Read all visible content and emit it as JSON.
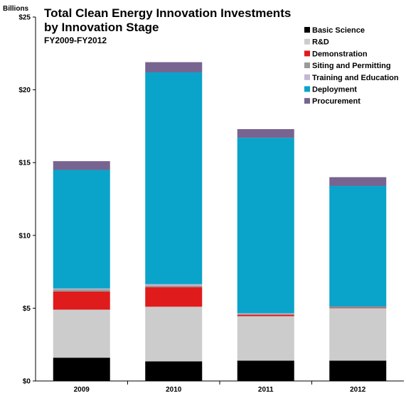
{
  "chart_data": {
    "type": "bar",
    "stacked": true,
    "title": "Total Clean Energy Innovation Investments",
    "title_line2": "by Innovation Stage",
    "subtitle": "FY2009-FY2012",
    "ylabel": "Billions",
    "ylim": [
      0,
      25
    ],
    "yticks": [
      0,
      5,
      10,
      15,
      20,
      25
    ],
    "ytick_labels": [
      "$0",
      "$5",
      "$10",
      "$15",
      "$20",
      "$25"
    ],
    "categories": [
      "2009",
      "2010",
      "2011",
      "2012"
    ],
    "grid": false,
    "legend_position": "top-right",
    "series": [
      {
        "name": "Basic Science",
        "color": "#000000",
        "values": [
          1.6,
          1.35,
          1.4,
          1.4
        ]
      },
      {
        "name": "R&D",
        "color": "#cccccc",
        "values": [
          3.3,
          3.75,
          3.05,
          3.6
        ]
      },
      {
        "name": "Demonstration",
        "color": "#e01b1b",
        "values": [
          1.25,
          1.35,
          0.1,
          0.05
        ]
      },
      {
        "name": "Siting and Permitting",
        "color": "#999999",
        "values": [
          0.15,
          0.1,
          0.05,
          0.05
        ]
      },
      {
        "name": "Training and Education",
        "color": "#c3b7d6",
        "values": [
          0.05,
          0.1,
          0.05,
          0.0
        ]
      },
      {
        "name": "Deployment",
        "color": "#0aa3c9",
        "values": [
          8.15,
          14.55,
          12.05,
          8.3
        ]
      },
      {
        "name": "Procurement",
        "color": "#786490",
        "values": [
          0.6,
          0.7,
          0.6,
          0.6
        ]
      }
    ]
  }
}
